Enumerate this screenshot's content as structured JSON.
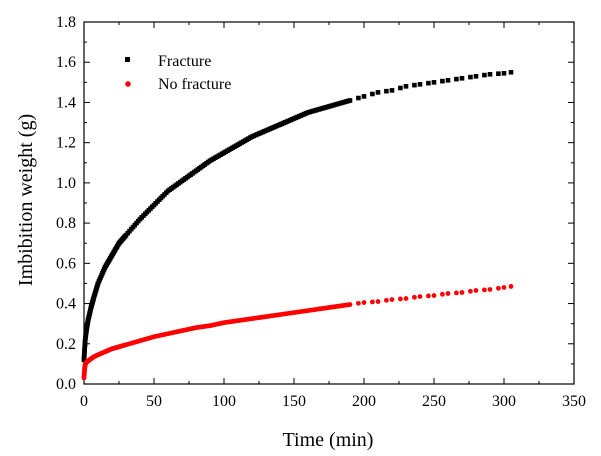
{
  "chart_data": {
    "type": "scatter",
    "title": "",
    "xlabel": "Time (min)",
    "ylabel": "Imbibition weight (g)",
    "xlim": [
      0,
      350
    ],
    "ylim": [
      0,
      1.8
    ],
    "xticks": [
      0,
      50,
      100,
      150,
      200,
      250,
      300,
      350
    ],
    "yticks": [
      0.0,
      0.2,
      0.4,
      0.6,
      0.8,
      1.0,
      1.2,
      1.4,
      1.6,
      1.8
    ],
    "xtick_labels": [
      "0",
      "50",
      "100",
      "150",
      "200",
      "250",
      "300",
      "350"
    ],
    "ytick_labels": [
      "0.0",
      "0.2",
      "0.4",
      "0.6",
      "0.8",
      "1.0",
      "1.2",
      "1.4",
      "1.6",
      "1.8"
    ],
    "grid": false,
    "legend_position": "top-left",
    "series": [
      {
        "name": "Fracture",
        "marker": "square",
        "color": "#000000",
        "x": [
          0,
          0.5,
          1,
          2,
          3,
          5,
          7,
          10,
          15,
          20,
          25,
          30,
          40,
          50,
          60,
          70,
          80,
          90,
          100,
          110,
          120,
          130,
          140,
          150,
          160,
          170,
          180,
          190,
          200,
          210,
          220,
          230,
          240,
          250,
          260,
          270,
          280,
          290,
          300,
          305
        ],
        "y": [
          0.12,
          0.18,
          0.23,
          0.28,
          0.32,
          0.38,
          0.43,
          0.5,
          0.58,
          0.64,
          0.7,
          0.74,
          0.82,
          0.89,
          0.96,
          1.01,
          1.06,
          1.11,
          1.15,
          1.19,
          1.23,
          1.26,
          1.29,
          1.32,
          1.35,
          1.37,
          1.39,
          1.41,
          1.43,
          1.45,
          1.46,
          1.48,
          1.49,
          1.5,
          1.51,
          1.52,
          1.53,
          1.54,
          1.545,
          1.55
        ]
      },
      {
        "name": "No fracture",
        "marker": "circle",
        "color": "#ff0000",
        "x": [
          0,
          0.5,
          1,
          2,
          3,
          5,
          7,
          10,
          15,
          20,
          25,
          30,
          40,
          50,
          60,
          70,
          80,
          90,
          100,
          110,
          120,
          130,
          140,
          150,
          160,
          170,
          180,
          190,
          200,
          210,
          220,
          230,
          240,
          250,
          260,
          270,
          280,
          290,
          300,
          305
        ],
        "y": [
          0.03,
          0.08,
          0.1,
          0.11,
          0.115,
          0.125,
          0.135,
          0.145,
          0.16,
          0.175,
          0.185,
          0.195,
          0.215,
          0.235,
          0.25,
          0.265,
          0.28,
          0.29,
          0.305,
          0.315,
          0.325,
          0.335,
          0.345,
          0.355,
          0.365,
          0.375,
          0.385,
          0.395,
          0.405,
          0.41,
          0.42,
          0.425,
          0.435,
          0.44,
          0.45,
          0.455,
          0.465,
          0.47,
          0.48,
          0.485
        ]
      }
    ]
  }
}
